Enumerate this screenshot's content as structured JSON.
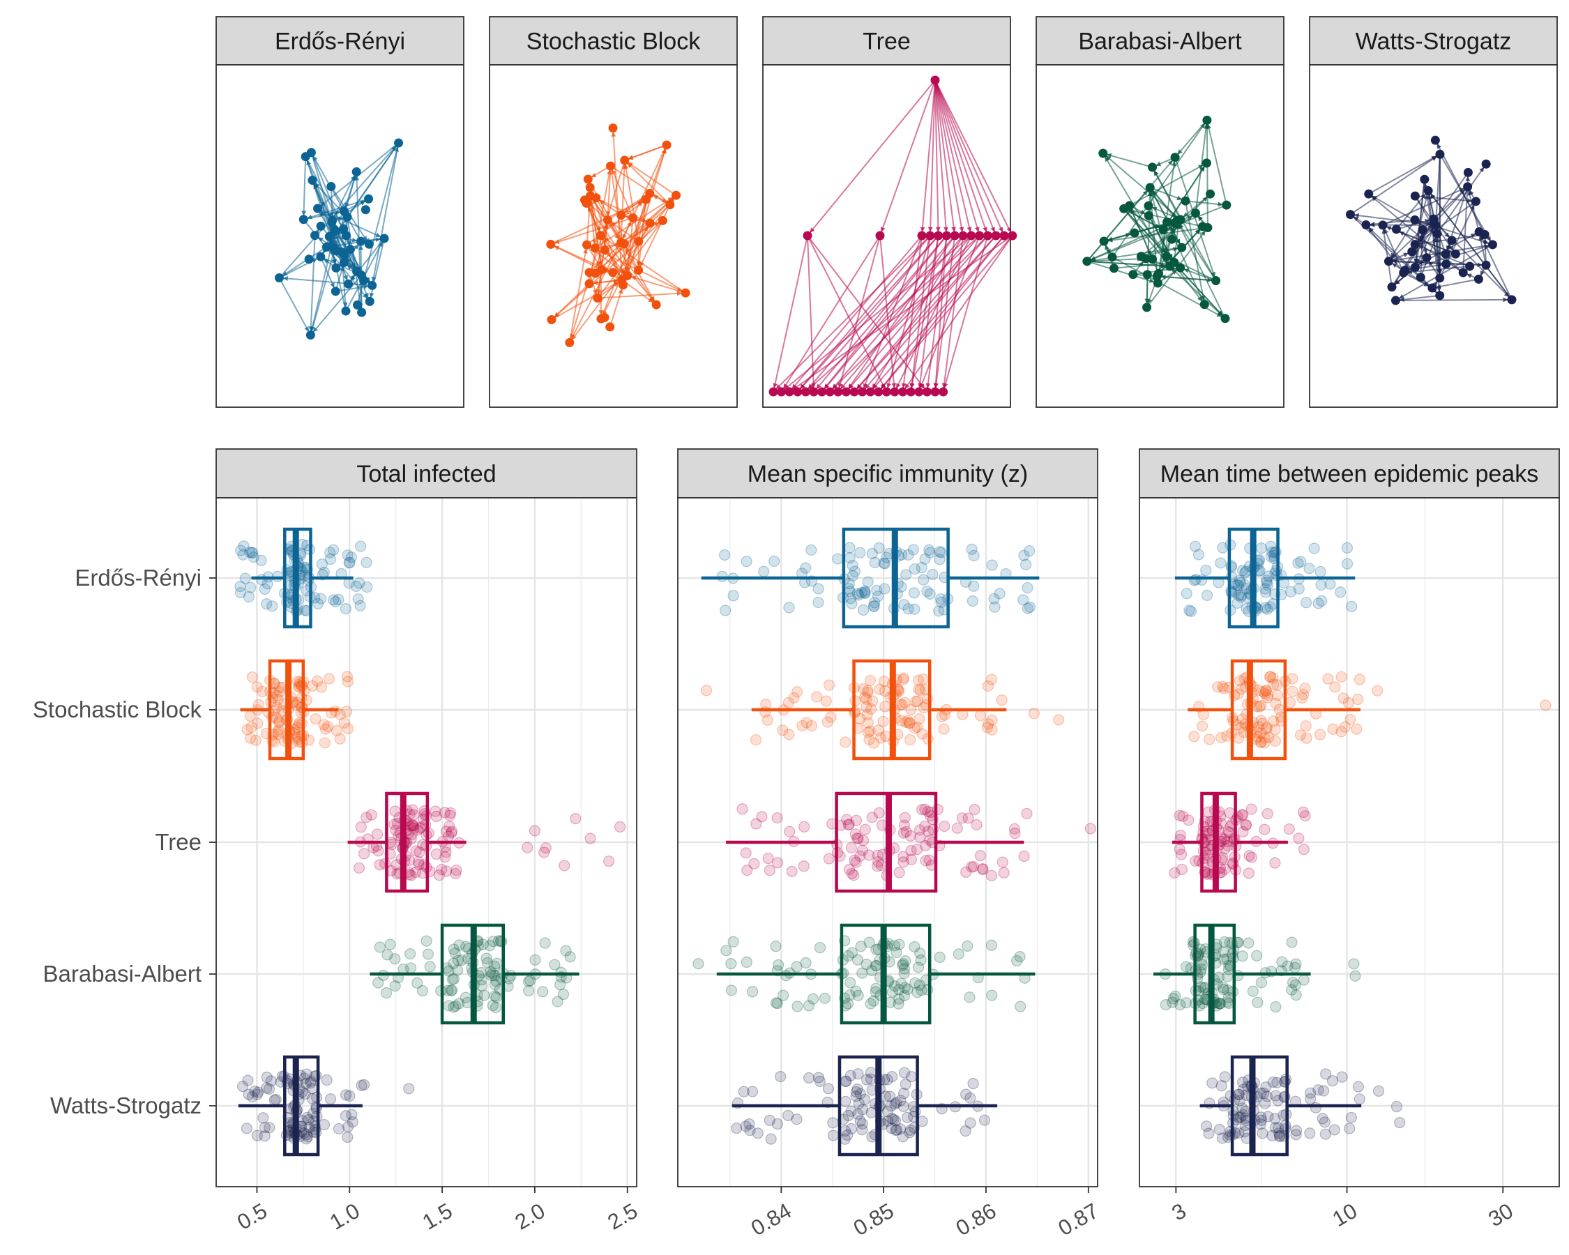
{
  "networks": {
    "panels": [
      {
        "title": "Erdős-Rényi",
        "color": "#0b6494"
      },
      {
        "title": "Stochastic Block",
        "color": "#f2510d"
      },
      {
        "title": "Tree",
        "color": "#b8084f"
      },
      {
        "title": "Barabasi-Albert",
        "color": "#05573f"
      },
      {
        "title": "Watts-Strogatz",
        "color": "#1b2450"
      }
    ]
  },
  "chart_data": [
    {
      "type": "boxplot",
      "title": "Total infected",
      "xscale": "linear",
      "xlim": [
        0.28,
        2.55
      ],
      "ticks": [
        0.5,
        1.0,
        1.5,
        2.0,
        2.5
      ],
      "tick_labels": [
        "0.5",
        "1.0",
        "1.5",
        "2.0",
        "2.5"
      ],
      "grid": true,
      "series": [
        {
          "name": "Erdős-Rényi",
          "color": "#0b6494",
          "whisker_low": 0.47,
          "q1": 0.65,
          "median": 0.71,
          "q3": 0.79,
          "whisker_high": 1.02,
          "points_range": [
            0.4,
            1.1
          ],
          "outliers": []
        },
        {
          "name": "Stochastic Block",
          "color": "#f2510d",
          "whisker_low": 0.41,
          "q1": 0.57,
          "median": 0.67,
          "q3": 0.75,
          "whisker_high": 0.94,
          "points_range": [
            0.44,
            1.0
          ],
          "outliers": []
        },
        {
          "name": "Tree",
          "color": "#b8084f",
          "whisker_low": 0.99,
          "q1": 1.2,
          "median": 1.29,
          "q3": 1.42,
          "whisker_high": 1.63,
          "points_range": [
            1.05,
            1.6
          ],
          "outliers": [
            2.0,
            2.06,
            2.16,
            2.22,
            2.3,
            2.4,
            2.46,
            1.96,
            2.05
          ]
        },
        {
          "name": "Barabasi-Albert",
          "color": "#05573f",
          "whisker_low": 1.11,
          "q1": 1.5,
          "median": 1.67,
          "q3": 1.83,
          "whisker_high": 2.24,
          "points_range": [
            1.15,
            2.2
          ],
          "outliers": []
        },
        {
          "name": "Watts-Strogatz",
          "color": "#1b2450",
          "whisker_low": 0.4,
          "q1": 0.65,
          "median": 0.71,
          "q3": 0.83,
          "whisker_high": 1.07,
          "points_range": [
            0.42,
            1.08
          ],
          "outliers": [
            1.32
          ]
        }
      ]
    },
    {
      "type": "boxplot",
      "title": "Mean specific immunity (z)",
      "xscale": "linear",
      "xlim": [
        0.8299,
        0.8709
      ],
      "ticks": [
        0.84,
        0.85,
        0.86,
        0.87
      ],
      "tick_labels": [
        "0.84",
        "0.85",
        "0.86",
        "0.87"
      ],
      "grid": true,
      "series": [
        {
          "name": "Erdős-Rényi",
          "color": "#0b6494",
          "whisker_low": 0.8322,
          "q1": 0.8461,
          "median": 0.8511,
          "q3": 0.8563,
          "whisker_high": 0.8652,
          "points_range": [
            0.8327,
            0.865
          ],
          "outliers": []
        },
        {
          "name": "Stochastic Block",
          "color": "#f2510d",
          "whisker_low": 0.8371,
          "q1": 0.8471,
          "median": 0.8509,
          "q3": 0.8545,
          "whisker_high": 0.862,
          "points_range": [
            0.8375,
            0.8625
          ],
          "outliers": [
            0.8327,
            0.8647,
            0.8671
          ]
        },
        {
          "name": "Tree",
          "color": "#b8084f",
          "whisker_low": 0.8346,
          "q1": 0.8454,
          "median": 0.8505,
          "q3": 0.8551,
          "whisker_high": 0.8637,
          "points_range": [
            0.8345,
            0.864
          ],
          "outliers": [
            0.8702
          ]
        },
        {
          "name": "Barabasi-Albert",
          "color": "#05573f",
          "whisker_low": 0.8337,
          "q1": 0.8459,
          "median": 0.85,
          "q3": 0.8545,
          "whisker_high": 0.8648,
          "points_range": [
            0.834,
            0.8648
          ],
          "outliers": [
            0.8319
          ]
        },
        {
          "name": "Watts-Strogatz",
          "color": "#1b2450",
          "whisker_low": 0.8352,
          "q1": 0.8457,
          "median": 0.8495,
          "q3": 0.8533,
          "whisker_high": 0.8611,
          "points_range": [
            0.8355,
            0.861
          ],
          "outliers": []
        }
      ]
    },
    {
      "type": "boxplot",
      "title": "Mean time between epidemic peaks",
      "xscale": "log",
      "xlim": [
        2.32,
        44.6
      ],
      "ticks": [
        3,
        10,
        30
      ],
      "tick_labels": [
        "3",
        "10",
        "30"
      ],
      "grid": true,
      "series": [
        {
          "name": "Erdős-Rényi",
          "color": "#0b6494",
          "whisker_low": 2.98,
          "q1": 4.37,
          "median": 5.17,
          "q3": 6.15,
          "whisker_high": 10.59,
          "points_range": [
            3.2,
            10.8
          ],
          "outliers": []
        },
        {
          "name": "Stochastic Block",
          "color": "#f2510d",
          "whisker_low": 3.26,
          "q1": 4.46,
          "median": 5.05,
          "q3": 6.47,
          "whisker_high": 11.0,
          "points_range": [
            3.3,
            11.0
          ],
          "outliers": [
            12.4,
            40.5
          ]
        },
        {
          "name": "Tree",
          "color": "#b8084f",
          "whisker_low": 2.92,
          "q1": 3.6,
          "median": 3.97,
          "q3": 4.56,
          "whisker_high": 6.6,
          "points_range": [
            2.9,
            7.5
          ],
          "outliers": []
        },
        {
          "name": "Barabasi-Albert",
          "color": "#05573f",
          "whisker_low": 2.56,
          "q1": 3.43,
          "median": 3.85,
          "q3": 4.52,
          "whisker_high": 7.75,
          "points_range": [
            2.6,
            7.6
          ],
          "outliers": [
            10.5,
            10.6
          ]
        },
        {
          "name": "Watts-Strogatz",
          "color": "#1b2450",
          "whisker_low": 3.55,
          "q1": 4.46,
          "median": 5.14,
          "q3": 6.56,
          "whisker_high": 11.07,
          "points_range": [
            3.6,
            11.0
          ],
          "outliers": [
            12.5,
            14.2,
            14.5
          ]
        }
      ]
    }
  ],
  "categories": [
    "Erdős-Rényi",
    "Stochastic Block",
    "Tree",
    "Barabasi-Albert",
    "Watts-Strogatz"
  ]
}
